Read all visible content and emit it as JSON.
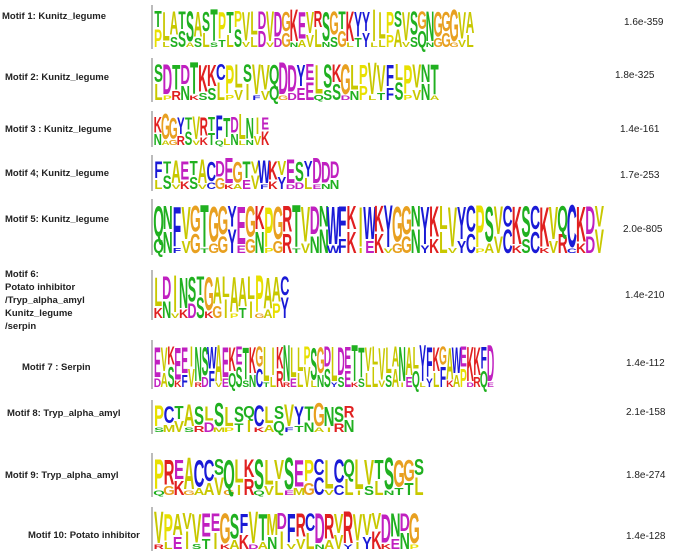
{
  "motifs": [
    {
      "label": [
        "Motif 1:  Kunitz_legume"
      ],
      "evalue": "1.6e-359",
      "top": "TLATSASTPTPVLDVDGKEVRSGTKYYILPSVSGNGGGVA",
      "bottom": "PLSSASLSTLSVLDVDGNAVLNSGLTYLLPAVSQNGGGVL"
    },
    {
      "label": [
        "Motif 2: Kunitz_legume"
      ],
      "evalue": "1.8e-325",
      "top": "SDTDTKKCPLSVVQDDYELSKGLPVVFLPVNT",
      "bottom": "LPRNKSSLPVIFVQGDEEQSSDNPLTFSPVNA"
    },
    {
      "label": [
        "Motif 3 : Kunitz_legume"
      ],
      "evalue": "1.4e-161",
      "top": "KGGYTVRTFTDLNIE",
      "bottom": "NAGRSVKTQLNLNVK"
    },
    {
      "label": [
        "Motif 4; Kunitz_legume"
      ],
      "evalue": "1.7e-253",
      "top": "FTAETACDEGTVWKVESYDDD",
      "bottom": "LSVKSVCGKAEVFKYDDLENN"
    },
    {
      "label": [
        "Motif 5: Kunitz_legume"
      ],
      "evalue": "2.0e-805",
      "top": "QNFVGTGGYEGKPGRTVDNWFKIWKYGGNYKLVYCPSVCKSCKVQCKDV",
      "bottom": "QNFVGTGGYEGNPGRTVNNWFKIEKVGGNYKLVYCPAVCKSCKVRCKDV"
    },
    {
      "label": [
        "Motif 6:",
        "Potato inhibitor",
        "/Tryp_alpha_amyl",
        "Kunitz_legume",
        "/serpin"
      ],
      "evalue": "1.4e-210",
      "top": "LDINSTGALAALPAAC",
      "bottom": "KNVKDSKGIPTIGAPY"
    },
    {
      "label": [
        "Motif 7 : Serpin"
      ],
      "evalue": "1.4e-112",
      "top": "EVKEEINSWAEKETKGLIKNLLPSGDLDETTVLVLANALYFKGAWEKKFD",
      "bottom": "DASKFVRDFVEQSSNCTLRRELVLNSYSEKSLLVSAIEQLYLFKAPDRQE"
    },
    {
      "label": [
        "Motif 8: Tryp_alpha_amyl"
      ],
      "evalue": "2.1e-158",
      "top": "PCTASLSLSQCLSVYTGNSR",
      "bottom": "SMVSRDMPTIKAQFTNAIRN"
    },
    {
      "label": [
        "Motif 9: Tryp_alpha_amyl"
      ],
      "evalue": "1.8e-274",
      "top": "PREACCSQLKSLVSEPCLCQLVTSGGS",
      "bottom": "QGKGAAVGIRQVLEMGCVCLISLNTTL"
    },
    {
      "label": [
        "Motif 10: Potato inhibitor"
      ],
      "evalue": "1.4e-128",
      "top": "VPAVVEEGSFVTMDFRCDRVRVVVDNDG",
      "bottom": "RLEISTIKAKDANIVVLNAVYIYKKENP"
    }
  ],
  "residue_colors": {
    "A": "#c8c800",
    "V": "#c8c800",
    "L": "#c8c800",
    "I": "#c8c800",
    "M": "#c8c800",
    "C": "#1a1ad6",
    "F": "#1a1ad6",
    "W": "#1a1ad6",
    "Y": "#1a1ad6",
    "G": "#e8a020",
    "P": "#e8e000",
    "S": "#20b020",
    "T": "#20b020",
    "N": "#20b020",
    "Q": "#20b020",
    "H": "#20b0b0",
    "D": "#c020c0",
    "E": "#c020c0",
    "K": "#e02020",
    "R": "#e02020"
  }
}
